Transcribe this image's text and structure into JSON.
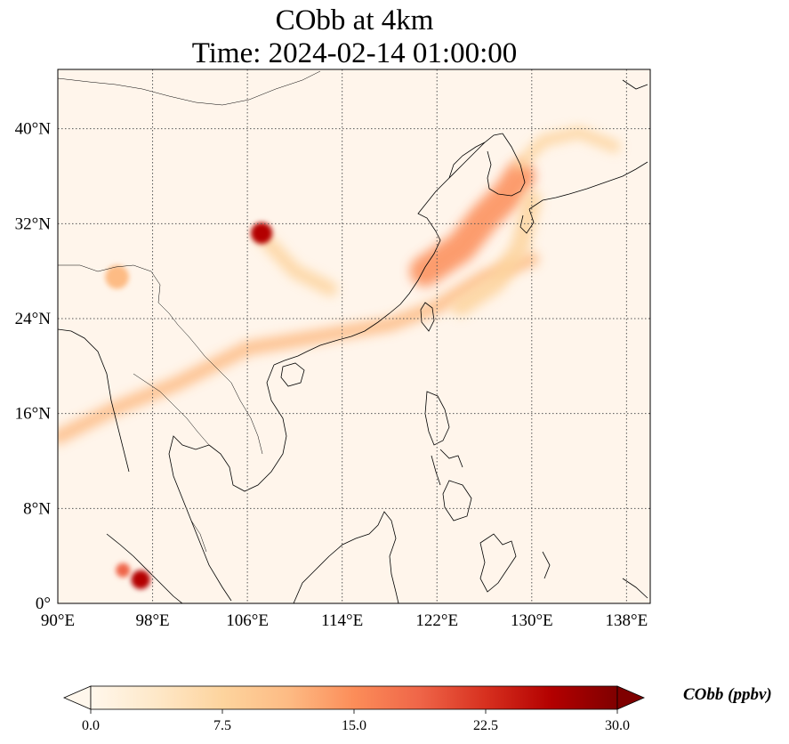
{
  "title": {
    "line1": "CObb at 4km",
    "line2": "Time: 2024-02-14 01:00:00"
  },
  "map": {
    "lon_range": [
      90,
      140
    ],
    "lat_range": [
      0,
      45
    ],
    "lon_ticks": [
      {
        "value": 90,
        "label": "90°E"
      },
      {
        "value": 98,
        "label": "98°E"
      },
      {
        "value": 106,
        "label": "106°E"
      },
      {
        "value": 114,
        "label": "114°E"
      },
      {
        "value": 122,
        "label": "122°E"
      },
      {
        "value": 130,
        "label": "130°E"
      },
      {
        "value": 138,
        "label": "138°E"
      }
    ],
    "lat_ticks": [
      {
        "value": 0,
        "label": "0°"
      },
      {
        "value": 8,
        "label": "8°N"
      },
      {
        "value": 16,
        "label": "16°N"
      },
      {
        "value": 24,
        "label": "24°N"
      },
      {
        "value": 32,
        "label": "32°N"
      },
      {
        "value": 40,
        "label": "40°N"
      }
    ],
    "gridlines": true,
    "background_color": "#fff5eb",
    "plumes": [
      {
        "name": "central-china-hotspot",
        "lon": 107.2,
        "lat": 31.2,
        "value": 28,
        "radius_deg": 0.9
      },
      {
        "name": "sumatra-hotspot-a",
        "lon": 97.0,
        "lat": 2.0,
        "value": 25,
        "radius_deg": 0.8
      },
      {
        "name": "sumatra-hotspot-b",
        "lon": 95.5,
        "lat": 2.8,
        "value": 18,
        "radius_deg": 0.6
      },
      {
        "name": "myanmar-hotspot",
        "lon": 95.0,
        "lat": 27.5,
        "value": 13,
        "radius_deg": 1.0
      }
    ],
    "bands": [
      {
        "name": "subtropical-band",
        "value": 12,
        "width_deg": 1.2,
        "path": [
          [
            90,
            14
          ],
          [
            95,
            16.5
          ],
          [
            100,
            18.5
          ],
          [
            106,
            21.5
          ],
          [
            112,
            22.5
          ],
          [
            118,
            23.5
          ],
          [
            122,
            25
          ],
          [
            126,
            27.5
          ],
          [
            130,
            29
          ]
        ]
      },
      {
        "name": "east-china-sea-plume",
        "value": 14,
        "width_deg": 2.6,
        "path": [
          [
            121,
            28
          ],
          [
            124,
            30
          ],
          [
            126,
            32.5
          ],
          [
            128,
            34.5
          ],
          [
            129,
            36
          ]
        ]
      },
      {
        "name": "korea-japan-arc",
        "value": 8,
        "width_deg": 1.0,
        "path": [
          [
            129,
            37
          ],
          [
            131,
            39
          ],
          [
            134,
            39.7
          ],
          [
            137,
            38.5
          ]
        ]
      },
      {
        "name": "southward-trail",
        "value": 9,
        "width_deg": 1.6,
        "path": [
          [
            130,
            34
          ],
          [
            129,
            30
          ],
          [
            127,
            27
          ],
          [
            124,
            25
          ]
        ]
      },
      {
        "name": "central-trail",
        "value": 8,
        "width_deg": 1.2,
        "path": [
          [
            107.2,
            31
          ],
          [
            110,
            28
          ],
          [
            113,
            26.5
          ]
        ]
      }
    ]
  },
  "colorbar": {
    "label": "CObb (ppbv)",
    "min": 0,
    "max": 30,
    "ticks": [
      "0.0",
      "7.5",
      "15.0",
      "22.5",
      "30.0"
    ],
    "extend": "both",
    "colormap": "OrRd",
    "colors": [
      "#fff7ec",
      "#fee8c8",
      "#fdd49e",
      "#fdbb84",
      "#fc8d59",
      "#ef6548",
      "#d7301f",
      "#b30000",
      "#7f0000"
    ]
  }
}
